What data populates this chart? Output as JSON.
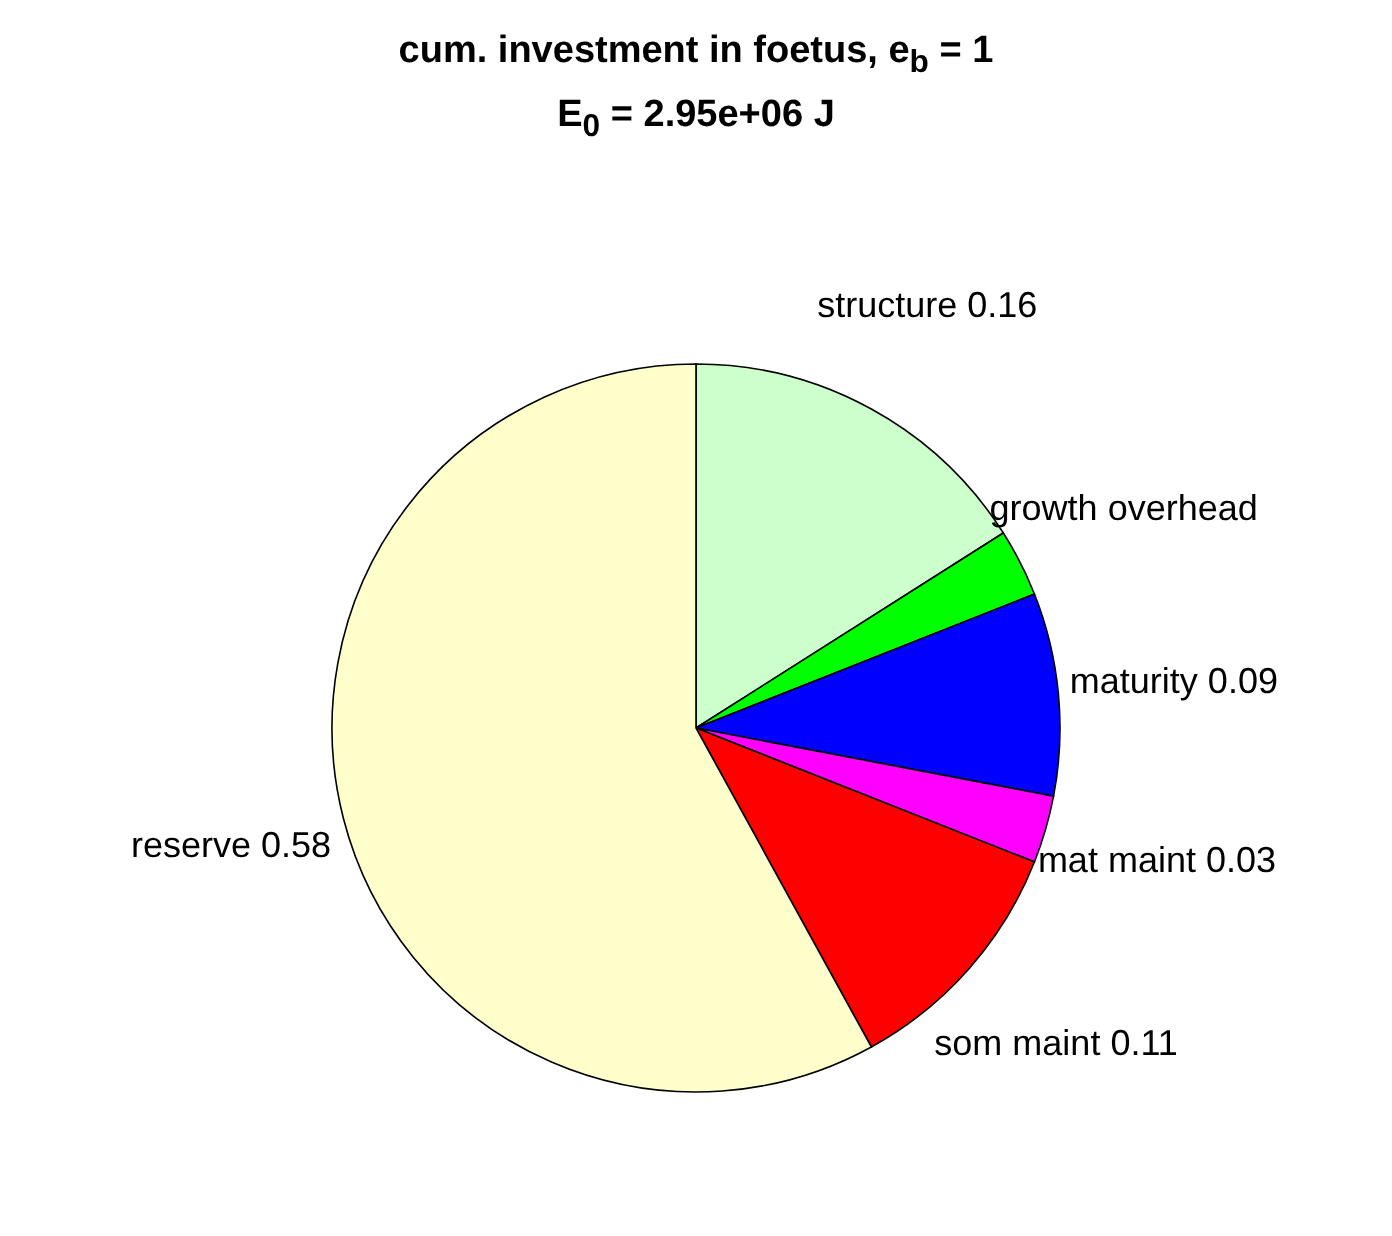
{
  "chart_data": {
    "type": "pie",
    "title": "cum. investment in foetus, e$_{b}$ = 1",
    "subtitle": "E$_{0}$ = 2.95e+06 J",
    "categories": [
      "structure",
      "growth overhead",
      "maturity",
      "mat maint",
      "som maint",
      "reserve"
    ],
    "values": [
      0.16,
      0.03,
      0.09,
      0.03,
      0.11,
      0.58
    ],
    "value_labels": [
      "0.16",
      null,
      "0.09",
      "0.03",
      "0.11",
      "0.58"
    ],
    "colors": [
      "#ccffcc",
      "#00ff00",
      "#0000ff",
      "#ff00ff",
      "#ff0000",
      "#ffffcc"
    ]
  }
}
